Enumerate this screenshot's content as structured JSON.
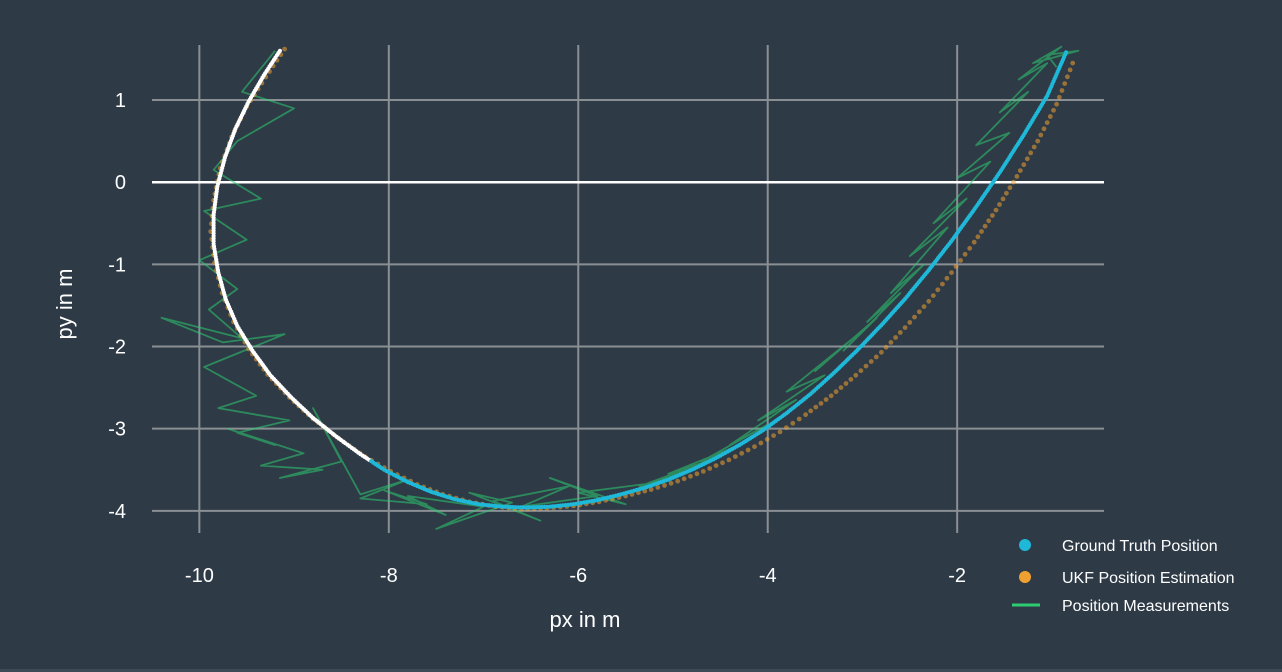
{
  "chart_data": {
    "type": "scatter",
    "title": "",
    "xlabel": "px in m",
    "ylabel": "py in m",
    "xlim": [
      -10.5,
      -0.45
    ],
    "ylim": [
      -4.27,
      1.67
    ],
    "xticks": [
      -10,
      -8,
      -6,
      -4,
      -2
    ],
    "yticks": [
      1,
      0,
      -1,
      -2,
      -3,
      -4
    ],
    "x_tick_labels": [
      "-10",
      "-8",
      "-6",
      "-4",
      "-2"
    ],
    "y_tick_labels": [
      "1",
      "0",
      "-1",
      "-2",
      "-3",
      "-4"
    ],
    "grid": true,
    "legend_position": "bottom-right",
    "colors": {
      "background": "#2e3a46",
      "grid": "#8a8f94",
      "zero_line": "#ffffff",
      "ground_truth": "#1fb8d8",
      "ground_truth_early": "#ffffff",
      "ukf": "#f0a030",
      "measurements": "#2ecc71"
    },
    "series": [
      {
        "name": "Ground Truth Position",
        "style": "markers",
        "x": [
          -9.15,
          -9.32,
          -9.48,
          -9.62,
          -9.73,
          -9.81,
          -9.85,
          -9.85,
          -9.8,
          -9.72,
          -9.6,
          -9.44,
          -9.25,
          -9.03,
          -8.8,
          -8.55,
          -8.3,
          -8.05,
          -7.8,
          -7.55,
          -7.3,
          -7.05,
          -6.8,
          -6.55,
          -6.3,
          -6.05,
          -5.8,
          -5.55,
          -5.3,
          -5.05,
          -4.8,
          -4.55,
          -4.3,
          -4.05,
          -3.8,
          -3.55,
          -3.3,
          -3.05,
          -2.8,
          -2.55,
          -2.3,
          -2.05,
          -1.8,
          -1.55,
          -1.3,
          -1.05,
          -0.85
        ],
        "y": [
          1.6,
          1.3,
          0.98,
          0.65,
          0.3,
          -0.05,
          -0.4,
          -0.75,
          -1.1,
          -1.43,
          -1.75,
          -2.05,
          -2.35,
          -2.62,
          -2.87,
          -3.1,
          -3.31,
          -3.5,
          -3.65,
          -3.77,
          -3.86,
          -3.92,
          -3.95,
          -3.96,
          -3.95,
          -3.92,
          -3.87,
          -3.8,
          -3.72,
          -3.62,
          -3.5,
          -3.36,
          -3.2,
          -3.02,
          -2.81,
          -2.58,
          -2.32,
          -2.04,
          -1.74,
          -1.42,
          -1.07,
          -0.7,
          -0.3,
          0.12,
          0.57,
          1.05,
          1.58
        ]
      },
      {
        "name": "UKF Position Estimation",
        "style": "markers",
        "x": [
          -9.1,
          -9.3,
          -9.5,
          -9.66,
          -9.78,
          -9.85,
          -9.88,
          -9.84,
          -9.76,
          -9.64,
          -9.48,
          -9.28,
          -9.05,
          -8.8,
          -8.53,
          -8.25,
          -7.98,
          -7.7,
          -7.43,
          -7.15,
          -6.87,
          -6.6,
          -6.33,
          -6.05,
          -5.78,
          -5.5,
          -5.23,
          -4.95,
          -4.68,
          -4.41,
          -4.14,
          -3.87,
          -3.6,
          -3.33,
          -3.07,
          -2.8,
          -2.55,
          -2.3,
          -2.06,
          -1.82,
          -1.59,
          -1.37,
          -1.15,
          -0.95,
          -0.78
        ],
        "y": [
          1.62,
          1.28,
          0.92,
          0.55,
          0.17,
          -0.22,
          -0.6,
          -0.98,
          -1.35,
          -1.7,
          -2.03,
          -2.34,
          -2.62,
          -2.88,
          -3.12,
          -3.34,
          -3.52,
          -3.68,
          -3.8,
          -3.89,
          -3.95,
          -3.98,
          -3.97,
          -3.94,
          -3.89,
          -3.82,
          -3.74,
          -3.64,
          -3.52,
          -3.38,
          -3.22,
          -3.04,
          -2.83,
          -2.6,
          -2.35,
          -2.07,
          -1.77,
          -1.45,
          -1.1,
          -0.73,
          -0.34,
          0.07,
          0.5,
          0.95,
          1.45
        ]
      },
      {
        "name": "Position Measurements",
        "style": "line",
        "x": [
          -9.2,
          -9.55,
          -9.0,
          -9.6,
          -9.85,
          -9.35,
          -9.95,
          -9.5,
          -10.0,
          -9.6,
          -9.9,
          -9.55,
          -10.4,
          -9.75,
          -9.1,
          -9.95,
          -9.4,
          -9.8,
          -9.05,
          -9.6,
          -9.2,
          -9.7,
          -8.9,
          -9.35,
          -8.7,
          -9.15,
          -8.5,
          -8.8,
          -8.3,
          -7.8,
          -8.3,
          -7.6,
          -8.05,
          -7.4,
          -7.8,
          -7.0,
          -7.5,
          -6.7,
          -7.15,
          -6.4,
          -6.9,
          -6.1,
          -6.6,
          -5.8,
          -6.3,
          -5.5,
          -6.0,
          -5.2,
          -5.65,
          -4.9,
          -5.35,
          -4.6,
          -5.05,
          -4.3,
          -4.7,
          -4.0,
          -4.4,
          -3.7,
          -4.1,
          -3.4,
          -3.8,
          -3.1,
          -3.5,
          -2.85,
          -3.2,
          -2.6,
          -2.95,
          -2.35,
          -2.7,
          -2.1,
          -2.5,
          -1.9,
          -2.25,
          -1.65,
          -2.0,
          -1.45,
          -1.8,
          -1.25,
          -1.55,
          -1.05,
          -1.35,
          -0.9,
          -1.2,
          -0.72,
          -1.05,
          -0.95
        ],
        "y": [
          1.6,
          1.1,
          0.9,
          0.5,
          0.15,
          -0.2,
          -0.35,
          -0.7,
          -0.95,
          -1.3,
          -1.55,
          -1.9,
          -1.65,
          -1.95,
          -1.85,
          -2.25,
          -2.6,
          -2.75,
          -2.9,
          -3.05,
          -3.2,
          -3.0,
          -3.3,
          -3.45,
          -3.5,
          -3.6,
          -3.4,
          -2.75,
          -3.8,
          -3.62,
          -3.85,
          -3.92,
          -3.75,
          -4.05,
          -3.82,
          -3.95,
          -4.22,
          -3.9,
          -3.78,
          -4.12,
          -3.88,
          -3.7,
          -3.95,
          -3.82,
          -3.6,
          -3.92,
          -3.78,
          -3.66,
          -3.85,
          -3.52,
          -3.7,
          -3.38,
          -3.55,
          -3.2,
          -3.4,
          -2.95,
          -3.2,
          -2.65,
          -2.9,
          -2.35,
          -2.55,
          -1.9,
          -2.3,
          -1.65,
          -2.05,
          -1.35,
          -1.7,
          -1.0,
          -1.35,
          -0.55,
          -0.9,
          -0.2,
          -0.5,
          0.25,
          0.05,
          0.6,
          0.45,
          1.1,
          0.85,
          1.45,
          1.25,
          1.65,
          1.45,
          1.6,
          1.55,
          1.4
        ]
      }
    ],
    "legend": [
      "Ground Truth Position",
      "UKF Position Estimation",
      "Position Measurements"
    ]
  }
}
